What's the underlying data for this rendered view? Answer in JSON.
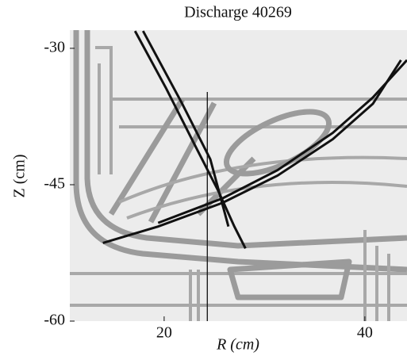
{
  "chart_data": {
    "type": "line",
    "title": "Discharge 40269",
    "x_label": "R (cm)",
    "y_label": "Z (cm)",
    "xlim": [
      10.6,
      44.2
    ],
    "ylim": [
      -60,
      -28
    ],
    "xticks": [
      20,
      40
    ],
    "yticks": [
      -30,
      -45,
      -60
    ],
    "series": [
      {
        "color": "#111111",
        "x": [
          13.9,
          19.4,
          25.8,
          31.3,
          36.8,
          40.8,
          43.6
        ],
        "values": [
          -51.4,
          -49.6,
          -47.0,
          -44.0,
          -40.0,
          -36.1,
          -31.3
        ]
      },
      {
        "color": "#111111",
        "x": [
          19.4,
          25.8,
          31.3,
          36.8,
          40.8,
          44.2
        ],
        "values": [
          -49.2,
          -46.5,
          -43.4,
          -39.3,
          -35.4,
          -31.3
        ]
      },
      {
        "color": "#111111",
        "x": [
          17.1,
          20.2,
          23.0,
          25.4,
          27.0,
          28.1
        ],
        "values": [
          -28.1,
          -34.4,
          -40.5,
          -45.7,
          -49.6,
          -52.0
        ]
      },
      {
        "color": "#111111",
        "x": [
          17.9,
          21.8,
          24.6,
          26.4
        ],
        "values": [
          -28.1,
          -36.1,
          -42.2,
          -49.6
        ]
      },
      {
        "color": "#111111",
        "x": [
          24.3,
          24.3
        ],
        "values": [
          -34.8,
          -60
        ]
      }
    ]
  }
}
